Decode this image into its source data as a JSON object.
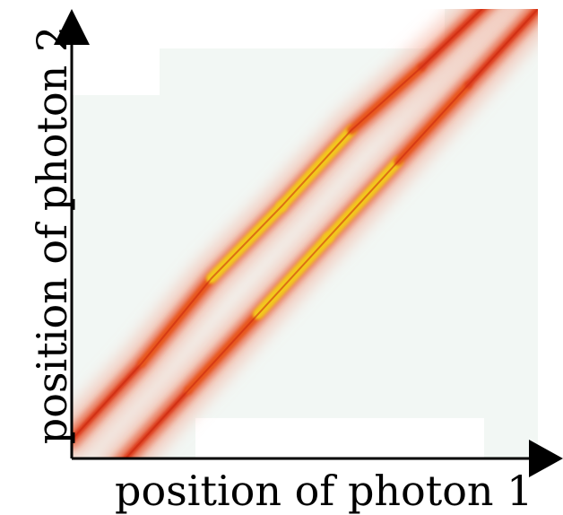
{
  "chart_data": {
    "type": "heatmap",
    "title": "",
    "xlabel": "position of photon 1",
    "ylabel": "position of photon 2",
    "x_ticks": [],
    "y_ticks": [],
    "colormap": [
      "#f2f7f4",
      "#f7c6b6",
      "#ec6a3e",
      "#d9301a",
      "#f0d21a",
      "#e9f11c"
    ],
    "background_color": "#f2f7f4",
    "grid": false,
    "legend": "none",
    "series": [
      {
        "ridge": "upper",
        "x": [
          0.0,
          0.15,
          0.3,
          0.45,
          0.6,
          0.75,
          0.9,
          1.0
        ],
        "y": [
          0.04,
          0.21,
          0.4,
          0.56,
          0.73,
          0.87,
          1.02,
          1.1
        ],
        "peak_intensity": [
          0.2,
          0.45,
          0.75,
          1.0,
          0.75,
          0.55,
          0.35,
          0.2
        ]
      },
      {
        "ridge": "lower",
        "x": [
          0.1,
          0.25,
          0.4,
          0.55,
          0.7,
          0.85,
          1.0
        ],
        "y": [
          -0.02,
          0.15,
          0.32,
          0.49,
          0.66,
          0.83,
          1.0
        ],
        "peak_intensity": [
          0.2,
          0.45,
          0.8,
          1.0,
          0.7,
          0.5,
          0.3
        ]
      }
    ]
  }
}
